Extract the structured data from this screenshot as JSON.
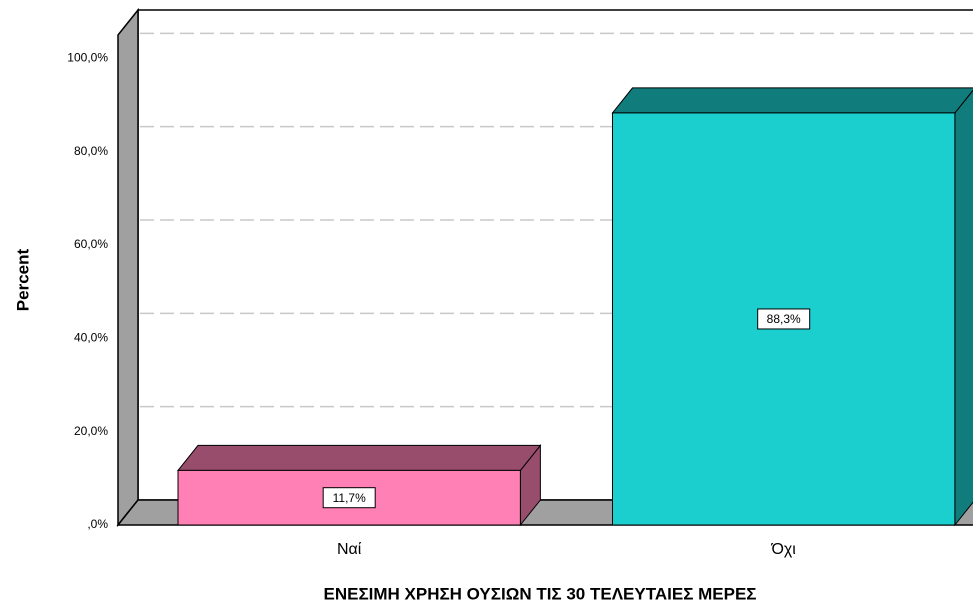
{
  "chart_data": {
    "type": "bar3d",
    "x_label": "ΕΝΕΣΙΜΗ ΧΡΗΣΗ ΟΥΣΙΩΝ ΤΙΣ 30 ΤΕΛΕΥΤΑΙΕΣ ΜΕΡΕΣ",
    "y_label": "Percent",
    "categories": [
      "Ναί",
      "Όχι"
    ],
    "values": [
      11.7,
      88.3
    ],
    "value_labels": [
      "11,7%",
      "88,3%"
    ],
    "colors": [
      "#ff80b4",
      "#1ccfcf"
    ],
    "ylim": [
      0,
      105
    ],
    "yticks": [
      {
        "value": 0,
        "label": ",0%"
      },
      {
        "value": 20,
        "label": "20,0%"
      },
      {
        "value": 40,
        "label": "40,0%"
      },
      {
        "value": 60,
        "label": "60,0%"
      },
      {
        "value": 80,
        "label": "80,0%"
      },
      {
        "value": 100,
        "label": "100,0%"
      }
    ],
    "grid": true
  }
}
